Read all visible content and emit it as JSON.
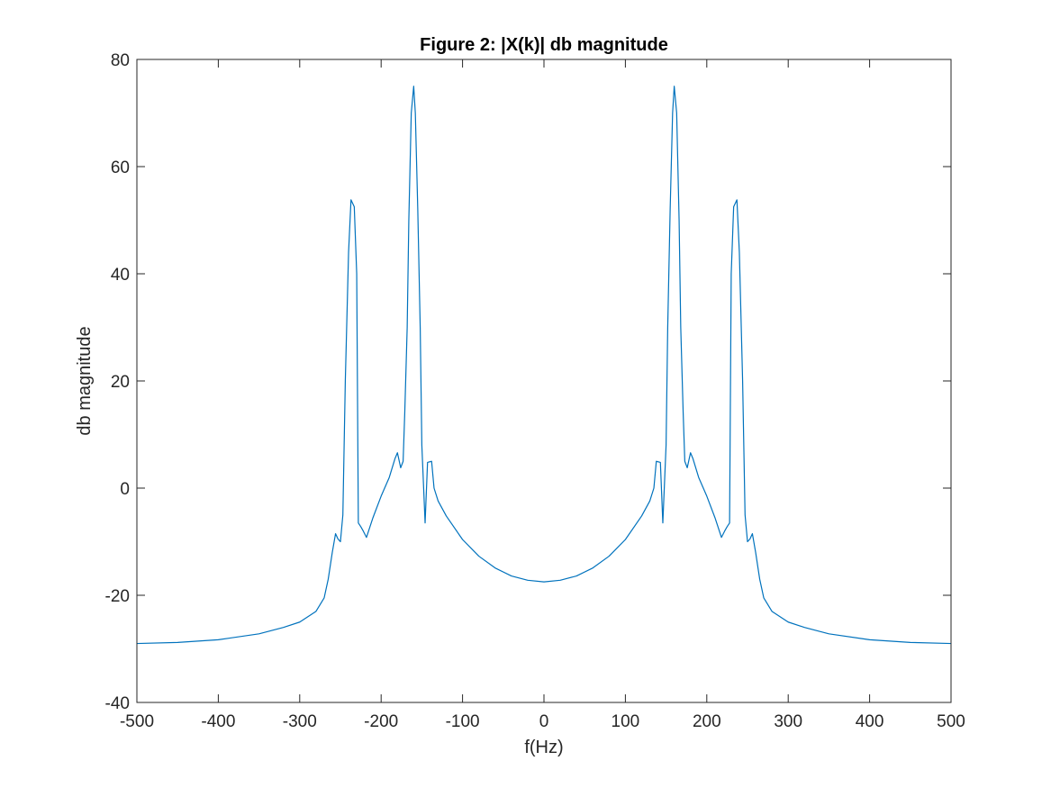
{
  "chart_data": {
    "type": "line",
    "title": "Figure 2: |X(k)| db magnitude",
    "xlabel": "f(Hz)",
    "ylabel": "db magnitude",
    "xlim": [
      -500,
      500
    ],
    "ylim": [
      -40,
      80
    ],
    "xticks": [
      -500,
      -400,
      -300,
      -200,
      -100,
      0,
      100,
      200,
      300,
      400,
      500
    ],
    "yticks": [
      -40,
      -20,
      0,
      20,
      40,
      60,
      80
    ],
    "grid": false,
    "legend": "none",
    "series": [
      {
        "color": "#0072BD",
        "points": [
          [
            0,
            -17.5
          ],
          [
            20,
            -17.2
          ],
          [
            40,
            -16.4
          ],
          [
            60,
            -14.9
          ],
          [
            80,
            -12.7
          ],
          [
            100,
            -9.6
          ],
          [
            120,
            -5.2
          ],
          [
            130,
            -2.4
          ],
          [
            135,
            0.0
          ],
          [
            138,
            5.0
          ],
          [
            143,
            4.8
          ],
          [
            146,
            -6.5
          ],
          [
            150,
            8.0
          ],
          [
            152,
            30.0
          ],
          [
            155,
            52.0
          ],
          [
            158,
            70.0
          ],
          [
            160,
            75.0
          ],
          [
            163,
            70.0
          ],
          [
            166,
            50.0
          ],
          [
            168,
            30.0
          ],
          [
            171,
            14.0
          ],
          [
            173,
            5.0
          ],
          [
            176,
            3.8
          ],
          [
            180,
            6.6
          ],
          [
            183,
            5.5
          ],
          [
            190,
            2.0
          ],
          [
            200,
            -1.5
          ],
          [
            210,
            -5.5
          ],
          [
            218,
            -9.2
          ],
          [
            222,
            -8.0
          ],
          [
            225,
            -7.2
          ],
          [
            228,
            -6.5
          ],
          [
            230,
            40.0
          ],
          [
            233,
            52.5
          ],
          [
            237,
            53.8
          ],
          [
            240,
            44.0
          ],
          [
            244,
            20.0
          ],
          [
            247,
            -5.0
          ],
          [
            250,
            -10.0
          ],
          [
            253,
            -9.5
          ],
          [
            256,
            -8.5
          ],
          [
            260,
            -12.0
          ],
          [
            265,
            -17.0
          ],
          [
            270,
            -20.5
          ],
          [
            280,
            -23.0
          ],
          [
            300,
            -25.0
          ],
          [
            320,
            -26.0
          ],
          [
            350,
            -27.2
          ],
          [
            400,
            -28.3
          ],
          [
            450,
            -28.8
          ],
          [
            500,
            -29.0
          ]
        ]
      }
    ]
  }
}
